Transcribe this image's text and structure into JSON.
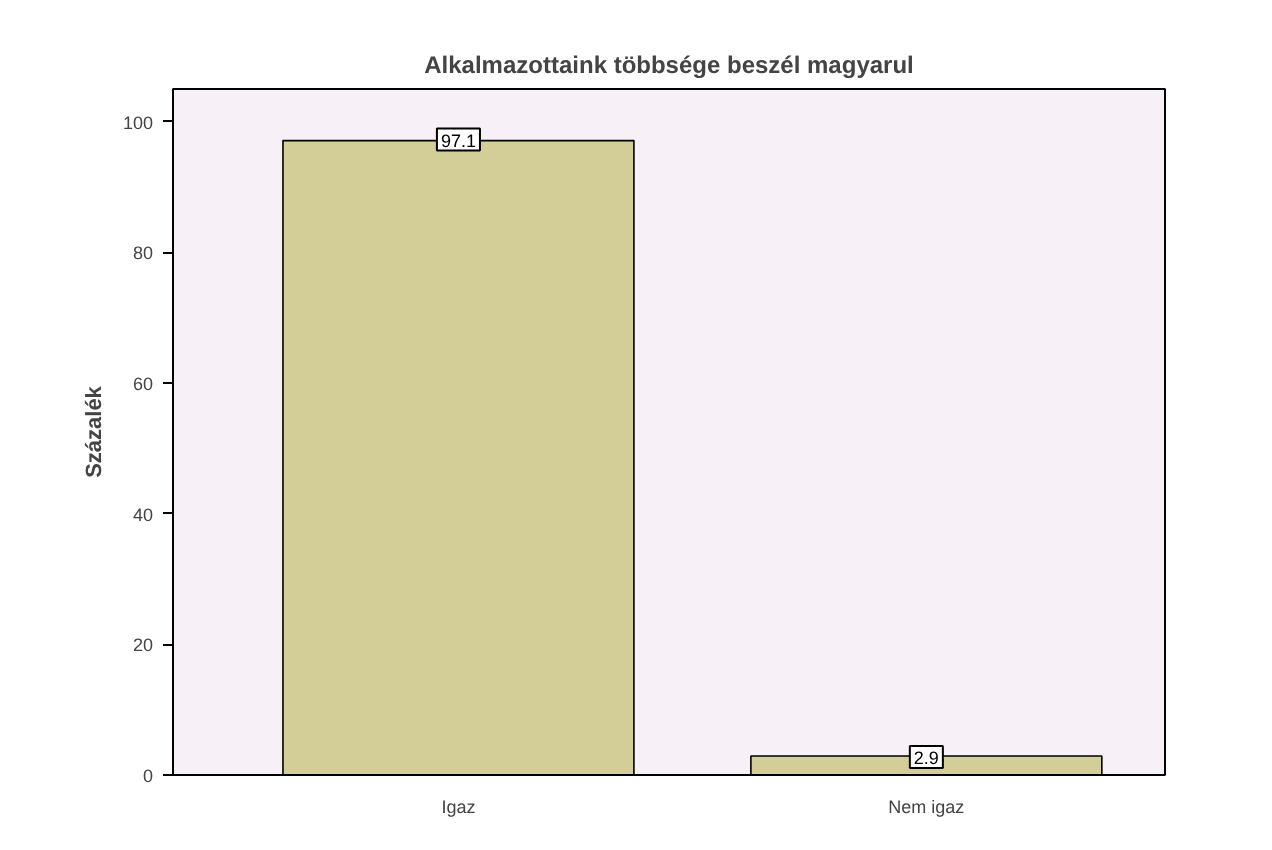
{
  "chart_data": {
    "type": "bar",
    "title": "Alkalmazottaink többsége beszél magyarul",
    "ylabel": "Százalék",
    "categories": [
      "Igaz",
      "Nem igaz"
    ],
    "values": [
      97.1,
      2.9
    ],
    "color": "#d3ce97",
    "ylim": [
      0,
      105
    ],
    "yticks": [
      0,
      20,
      40,
      60,
      80,
      100
    ],
    "grid": false,
    "data_labels": true
  }
}
